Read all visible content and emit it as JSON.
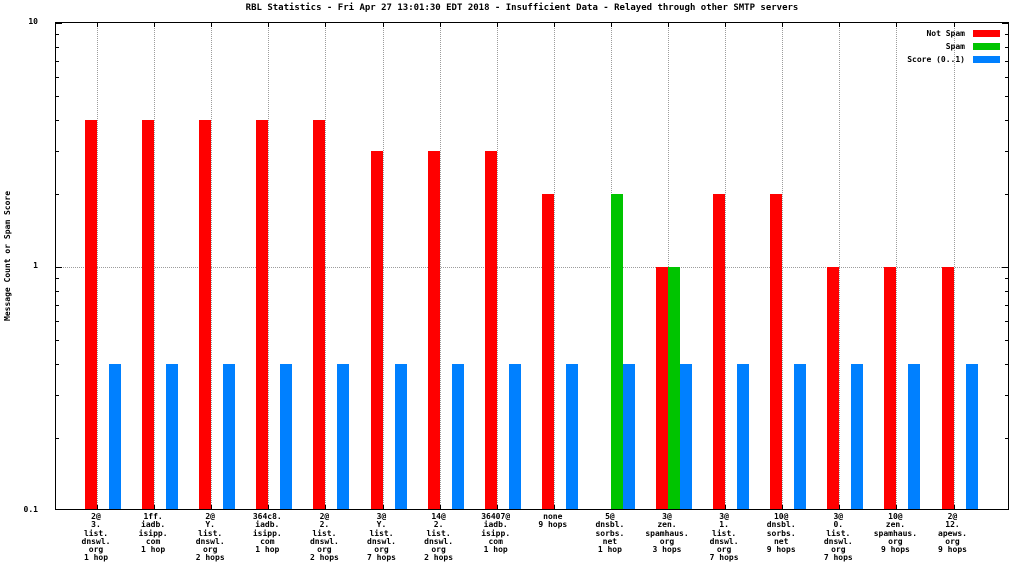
{
  "chart_data": {
    "type": "bar",
    "title": "RBL Statistics - Fri Apr 27 13:01:30 EDT 2018 - Insufficient Data - Relayed through other SMTP servers",
    "ylabel": "Message Count or Spam Score",
    "yscale": "log",
    "ylim": [
      0.1,
      10
    ],
    "grid": true,
    "legend_position": "top-right",
    "yticks": [
      {
        "label": "10",
        "value": 10
      },
      {
        "label": "1",
        "value": 1
      },
      {
        "label": "0.1",
        "value": 0.1
      }
    ],
    "yticks_minor": [
      0.2,
      0.3,
      0.4,
      0.5,
      0.6,
      0.7,
      0.8,
      0.9,
      2,
      3,
      4,
      5,
      6,
      7,
      8,
      9
    ],
    "series": [
      {
        "name": "Not Spam",
        "key": "not_spam",
        "color": "#ff0000"
      },
      {
        "name": "Spam",
        "key": "spam",
        "color": "#00c400"
      },
      {
        "name": "Score (0..1)",
        "key": "score",
        "color": "#0080ff"
      }
    ],
    "groups": [
      {
        "label_lines": [
          "2@",
          "3.",
          "list.",
          "dnswl.",
          "org",
          "1 hop"
        ],
        "not_spam": 4,
        "spam": 0,
        "score": 0.4
      },
      {
        "label_lines": [
          "1ff.",
          "iadb.",
          "isipp.",
          "com",
          "1 hop"
        ],
        "not_spam": 4,
        "spam": 0,
        "score": 0.4
      },
      {
        "label_lines": [
          "2@",
          "Y.",
          "list.",
          "dnswl.",
          "org",
          "2 hops"
        ],
        "not_spam": 4,
        "spam": 0,
        "score": 0.4
      },
      {
        "label_lines": [
          "364c8.",
          "iadb.",
          "isipp.",
          "com",
          "1 hop"
        ],
        "not_spam": 4,
        "spam": 0,
        "score": 0.4
      },
      {
        "label_lines": [
          "2@",
          "2.",
          "list.",
          "dnswl.",
          "org",
          "2 hops"
        ],
        "not_spam": 4,
        "spam": 0,
        "score": 0.4
      },
      {
        "label_lines": [
          "3@",
          "Y.",
          "list.",
          "dnswl.",
          "org",
          "7 hops"
        ],
        "not_spam": 3,
        "spam": 0,
        "score": 0.4
      },
      {
        "label_lines": [
          "14@",
          "2.",
          "list.",
          "dnswl.",
          "org",
          "2 hops"
        ],
        "not_spam": 3,
        "spam": 0,
        "score": 0.4
      },
      {
        "label_lines": [
          "36407@",
          "iadb.",
          "isipp.",
          "com",
          "1 hop"
        ],
        "not_spam": 3,
        "spam": 0,
        "score": 0.4
      },
      {
        "label_lines": [
          "none",
          "9 hops"
        ],
        "not_spam": 2,
        "spam": 0,
        "score": 0.4
      },
      {
        "label_lines": [
          "5@",
          "dnsbl.",
          "sorbs.",
          "net",
          "1 hop"
        ],
        "not_spam": 0,
        "spam": 2,
        "score": 0.4
      },
      {
        "label_lines": [
          "3@",
          "zen.",
          "spamhaus.",
          "org",
          "3 hops"
        ],
        "not_spam": 1,
        "spam": 1,
        "score": 0.4
      },
      {
        "label_lines": [
          "3@",
          "1.",
          "list.",
          "dnswl.",
          "org",
          "7 hops"
        ],
        "not_spam": 2,
        "spam": 0,
        "score": 0.4
      },
      {
        "label_lines": [
          "10@",
          "dnsbl.",
          "sorbs.",
          "net",
          "9 hops"
        ],
        "not_spam": 2,
        "spam": 0,
        "score": 0.4
      },
      {
        "label_lines": [
          "3@",
          "0.",
          "list.",
          "dnswl.",
          "org",
          "7 hops"
        ],
        "not_spam": 1,
        "spam": 0,
        "score": 0.4
      },
      {
        "label_lines": [
          "10@",
          "zen.",
          "spamhaus.",
          "org",
          "9 hops"
        ],
        "not_spam": 1,
        "spam": 0,
        "score": 0.4
      },
      {
        "label_lines": [
          "2@",
          "12.",
          "apews.",
          "org",
          "9 hops"
        ],
        "not_spam": 1,
        "spam": 0,
        "score": 0.4
      }
    ]
  }
}
